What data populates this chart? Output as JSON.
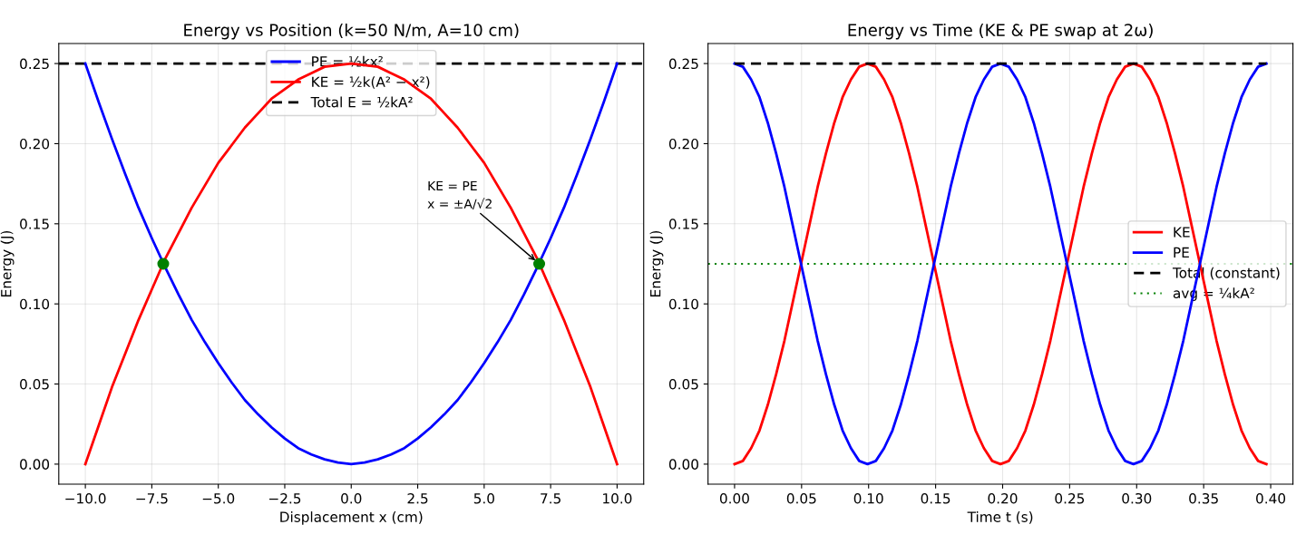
{
  "chart_data": [
    {
      "type": "line",
      "title": "Energy vs Position (k=50 N/m, A=10 cm)",
      "xlabel": "Displacement x (cm)",
      "ylabel": "Energy (J)",
      "x": [
        -10,
        -9.5,
        -9,
        -8.5,
        -8,
        -7.5,
        -7,
        -6.5,
        -6,
        -5.5,
        -5,
        -4.5,
        -4,
        -3.5,
        -3,
        -2.5,
        -2,
        -1.5,
        -1,
        -0.5,
        0,
        0.5,
        1,
        1.5,
        2,
        2.5,
        3,
        3.5,
        4,
        4.5,
        5,
        5.5,
        6,
        6.5,
        7,
        7.5,
        8,
        8.5,
        9,
        9.5,
        10
      ],
      "series": [
        {
          "name": "PE = ½kx²",
          "color": "#0000ff",
          "values": [
            0.25,
            0.226,
            0.203,
            0.181,
            0.16,
            0.141,
            0.123,
            0.106,
            0.09,
            0.076,
            0.063,
            0.051,
            0.04,
            0.031,
            0.023,
            0.016,
            0.01,
            0.006,
            0.003,
            0.001,
            0,
            0.001,
            0.003,
            0.006,
            0.01,
            0.016,
            0.023,
            0.031,
            0.04,
            0.051,
            0.063,
            0.076,
            0.09,
            0.106,
            0.123,
            0.141,
            0.16,
            0.181,
            0.203,
            0.226,
            0.25
          ]
        },
        {
          "name": "KE = ½k(A² − x²)",
          "color": "#ff0000",
          "values": [
            0,
            0.024,
            0.048,
            0.069,
            0.09,
            0.109,
            0.128,
            0.144,
            0.16,
            0.174,
            0.188,
            0.199,
            0.21,
            0.219,
            0.228,
            0.234,
            0.24,
            0.244,
            0.248,
            0.249,
            0.25,
            0.249,
            0.248,
            0.244,
            0.24,
            0.234,
            0.228,
            0.219,
            0.21,
            0.199,
            0.188,
            0.174,
            0.16,
            0.144,
            0.128,
            0.109,
            0.09,
            0.069,
            0.048,
            0.024,
            0
          ]
        },
        {
          "type": "scatter",
          "color": "#008000",
          "marker": "circle",
          "x": [
            -7.07,
            7.07
          ],
          "values": [
            0.125,
            0.125
          ]
        }
      ],
      "ref_lines": [
        {
          "axis": "y",
          "value": 0.25,
          "label": "Total E = ½kA²",
          "color": "#000000",
          "line_style": "dashed"
        }
      ],
      "annotations": [
        {
          "text": "KE = PE\nx = ±A/√2",
          "x": 7.07,
          "y": 0.125
        }
      ],
      "xlim": [
        -11,
        11
      ],
      "ylim": [
        -0.0125,
        0.2625
      ],
      "xticks": [
        {
          "value": -10,
          "label": "−10.0"
        },
        {
          "value": -7.5,
          "label": "−7.5"
        },
        {
          "value": -5,
          "label": "−5.0"
        },
        {
          "value": -2.5,
          "label": "−2.5"
        },
        {
          "value": 0,
          "label": "0.0"
        },
        {
          "value": 2.5,
          "label": "2.5"
        },
        {
          "value": 5,
          "label": "5.0"
        },
        {
          "value": 7.5,
          "label": "7.5"
        },
        {
          "value": 10,
          "label": "10.0"
        }
      ],
      "yticks": [
        {
          "value": 0,
          "label": "0.00"
        },
        {
          "value": 0.05,
          "label": "0.05"
        },
        {
          "value": 0.1,
          "label": "0.10"
        },
        {
          "value": 0.15,
          "label": "0.15"
        },
        {
          "value": 0.2,
          "label": "0.20"
        },
        {
          "value": 0.25,
          "label": "0.25"
        }
      ],
      "grid": true,
      "legend": "top"
    },
    {
      "type": "line",
      "title": "Energy vs Time (KE & PE swap at 2ω)",
      "xlabel": "Time t (s)",
      "ylabel": "Energy (J)",
      "x": [
        0,
        0.0062,
        0.0124,
        0.0186,
        0.0248,
        0.031,
        0.0372,
        0.0434,
        0.0496,
        0.0558,
        0.062,
        0.0682,
        0.0744,
        0.0806,
        0.0868,
        0.093,
        0.0992,
        0.1054,
        0.1116,
        0.1178,
        0.124,
        0.1302,
        0.1364,
        0.1426,
        0.1488,
        0.155,
        0.1612,
        0.1674,
        0.1736,
        0.1798,
        0.186,
        0.1922,
        0.1984,
        0.2046,
        0.2108,
        0.217,
        0.2232,
        0.2294,
        0.2356,
        0.2418,
        0.248,
        0.2542,
        0.2604,
        0.2666,
        0.2728,
        0.279,
        0.2852,
        0.2914,
        0.2976,
        0.3038,
        0.31,
        0.3162,
        0.3224,
        0.3286,
        0.3348,
        0.341,
        0.3472,
        0.3534,
        0.3596,
        0.3658,
        0.372,
        0.3782,
        0.3844,
        0.3906,
        0.3968
      ],
      "series": [
        {
          "name": "KE",
          "color": "#ff0000",
          "values": [
            0,
            0.002,
            0.01,
            0.021,
            0.037,
            0.056,
            0.077,
            0.101,
            0.125,
            0.149,
            0.173,
            0.194,
            0.213,
            0.229,
            0.24,
            0.248,
            0.25,
            0.248,
            0.24,
            0.229,
            0.213,
            0.194,
            0.173,
            0.149,
            0.125,
            0.101,
            0.077,
            0.056,
            0.037,
            0.021,
            0.01,
            0.002,
            0,
            0.002,
            0.01,
            0.021,
            0.037,
            0.056,
            0.077,
            0.101,
            0.125,
            0.149,
            0.173,
            0.194,
            0.213,
            0.229,
            0.24,
            0.248,
            0.25,
            0.248,
            0.24,
            0.229,
            0.213,
            0.194,
            0.173,
            0.149,
            0.125,
            0.101,
            0.077,
            0.056,
            0.037,
            0.021,
            0.01,
            0.002,
            0
          ]
        },
        {
          "name": "PE",
          "color": "#0000ff",
          "values": [
            0.25,
            0.248,
            0.24,
            0.229,
            0.213,
            0.194,
            0.173,
            0.149,
            0.125,
            0.101,
            0.077,
            0.056,
            0.037,
            0.021,
            0.01,
            0.002,
            0,
            0.002,
            0.01,
            0.021,
            0.037,
            0.056,
            0.077,
            0.101,
            0.125,
            0.149,
            0.173,
            0.194,
            0.213,
            0.229,
            0.24,
            0.248,
            0.25,
            0.248,
            0.24,
            0.229,
            0.213,
            0.194,
            0.173,
            0.149,
            0.125,
            0.101,
            0.077,
            0.056,
            0.037,
            0.021,
            0.01,
            0.002,
            0,
            0.002,
            0.01,
            0.021,
            0.037,
            0.056,
            0.077,
            0.101,
            0.125,
            0.149,
            0.173,
            0.194,
            0.213,
            0.229,
            0.24,
            0.248,
            0.25
          ]
        },
        {
          "name": "Total (constant)",
          "color": "#000000",
          "line_style": "dashed",
          "x": [
            0,
            0.3968
          ],
          "values": [
            0.25,
            0.25
          ]
        }
      ],
      "ref_lines": [
        {
          "axis": "y",
          "value": 0.125,
          "label": "avg = ¼kA²",
          "color": "#008000",
          "line_style": "dotted"
        }
      ],
      "xlim": [
        -0.0198,
        0.4166
      ],
      "ylim": [
        -0.0125,
        0.2625
      ],
      "xticks": [
        {
          "value": 0,
          "label": "0.00"
        },
        {
          "value": 0.05,
          "label": "0.05"
        },
        {
          "value": 0.1,
          "label": "0.10"
        },
        {
          "value": 0.15,
          "label": "0.15"
        },
        {
          "value": 0.2,
          "label": "0.20"
        },
        {
          "value": 0.25,
          "label": "0.25"
        },
        {
          "value": 0.3,
          "label": "0.30"
        },
        {
          "value": 0.35,
          "label": "0.35"
        },
        {
          "value": 0.4,
          "label": "0.40"
        }
      ],
      "yticks": [
        {
          "value": 0,
          "label": "0.00"
        },
        {
          "value": 0.05,
          "label": "0.05"
        },
        {
          "value": 0.1,
          "label": "0.10"
        },
        {
          "value": 0.15,
          "label": "0.15"
        },
        {
          "value": 0.2,
          "label": "0.20"
        },
        {
          "value": 0.25,
          "label": "0.25"
        }
      ],
      "grid": true,
      "legend": "right"
    }
  ]
}
